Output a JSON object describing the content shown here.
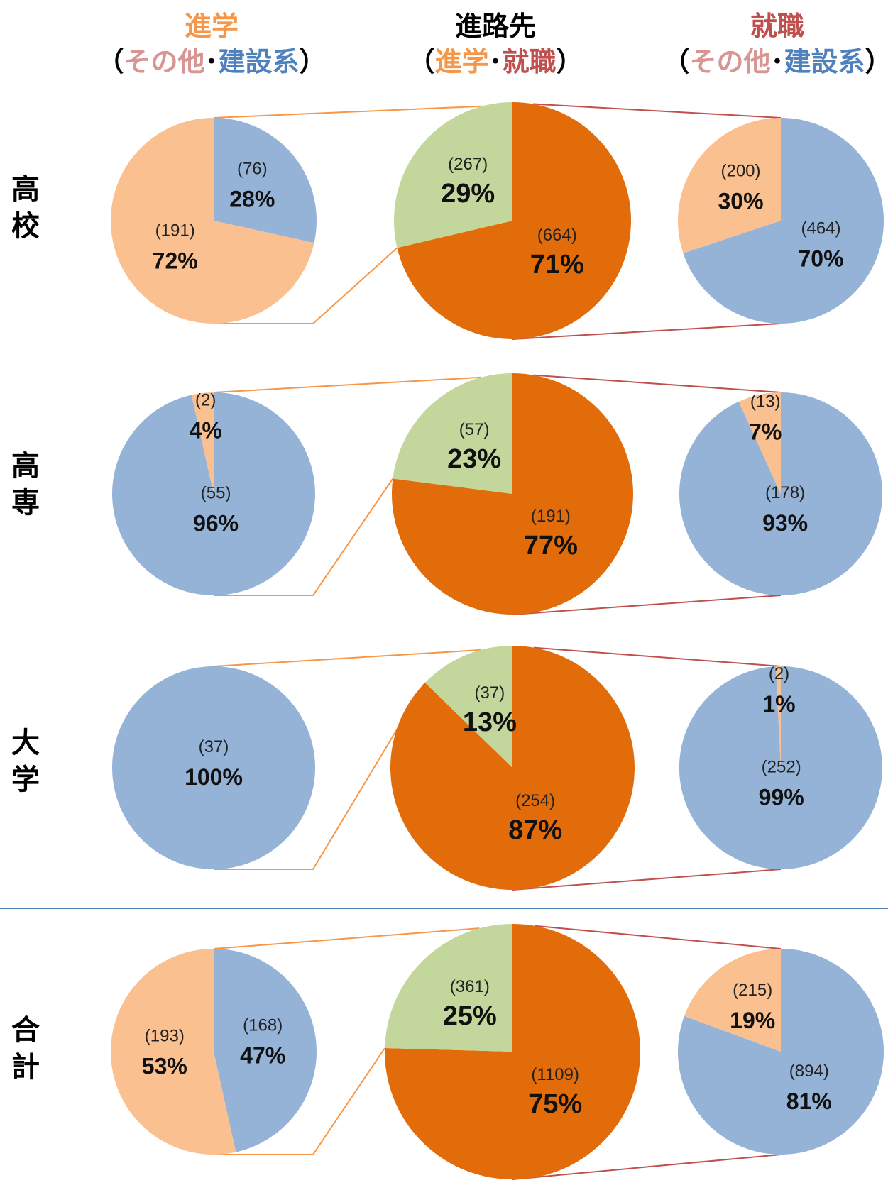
{
  "colors": {
    "shingaku": "#F79646",
    "shushoku": "#C0504D",
    "sonota": "#D99594",
    "kensetsu": "#4F81BD",
    "label_dark": "#000000",
    "pie_shingaku_center": "#E36C0A",
    "pie_shushoku_center": "#C3D69B",
    "pie_kensetsu": "#95B3D7",
    "pie_sonota": "#FAC090",
    "separator": "#4F81BD"
  },
  "headers": {
    "left": {
      "title": "進学",
      "open": "（",
      "a": "その他",
      "dot": "･",
      "b": "建設系",
      "close": "）"
    },
    "center": {
      "title": "進路先",
      "open": "（",
      "a": "進学",
      "dot": "･",
      "b": "就職",
      "close": "）"
    },
    "right": {
      "title": "就職",
      "open": "（",
      "a": "その他",
      "dot": "･",
      "b": "建設系",
      "close": "）"
    }
  },
  "row_labels": [
    "高校",
    "高専",
    "大学",
    "合計"
  ],
  "chart_data": [
    {
      "type": "pie",
      "group": "高校",
      "column": "進学",
      "slices": [
        {
          "label": "建設系",
          "count": 76,
          "percent": "28%",
          "color": "#95B3D7"
        },
        {
          "label": "その他",
          "count": 191,
          "percent": "72%",
          "color": "#FAC090"
        }
      ]
    },
    {
      "type": "pie",
      "group": "高校",
      "column": "進路先",
      "slices": [
        {
          "label": "就職",
          "count": 664,
          "percent": "71%",
          "color": "#E36C0A"
        },
        {
          "label": "進学",
          "count": 267,
          "percent": "29%",
          "color": "#C3D69B"
        }
      ]
    },
    {
      "type": "pie",
      "group": "高校",
      "column": "就職",
      "slices": [
        {
          "label": "建設系",
          "count": 464,
          "percent": "70%",
          "color": "#95B3D7"
        },
        {
          "label": "その他",
          "count": 200,
          "percent": "30%",
          "color": "#FAC090"
        }
      ]
    },
    {
      "type": "pie",
      "group": "高専",
      "column": "進学",
      "slices": [
        {
          "label": "建設系",
          "count": 55,
          "percent": "96%",
          "color": "#95B3D7"
        },
        {
          "label": "その他",
          "count": 2,
          "percent": "4%",
          "color": "#FAC090"
        }
      ]
    },
    {
      "type": "pie",
      "group": "高専",
      "column": "進路先",
      "slices": [
        {
          "label": "就職",
          "count": 191,
          "percent": "77%",
          "color": "#E36C0A"
        },
        {
          "label": "進学",
          "count": 57,
          "percent": "23%",
          "color": "#C3D69B"
        }
      ]
    },
    {
      "type": "pie",
      "group": "高専",
      "column": "就職",
      "slices": [
        {
          "label": "建設系",
          "count": 178,
          "percent": "93%",
          "color": "#95B3D7"
        },
        {
          "label": "その他",
          "count": 13,
          "percent": "7%",
          "color": "#FAC090"
        }
      ]
    },
    {
      "type": "pie",
      "group": "大学",
      "column": "進学",
      "slices": [
        {
          "label": "建設系",
          "count": 37,
          "percent": "100%",
          "color": "#95B3D7"
        }
      ]
    },
    {
      "type": "pie",
      "group": "大学",
      "column": "進路先",
      "slices": [
        {
          "label": "就職",
          "count": 254,
          "percent": "87%",
          "color": "#E36C0A"
        },
        {
          "label": "進学",
          "count": 37,
          "percent": "13%",
          "color": "#C3D69B"
        }
      ]
    },
    {
      "type": "pie",
      "group": "大学",
      "column": "就職",
      "slices": [
        {
          "label": "建設系",
          "count": 252,
          "percent": "99%",
          "color": "#95B3D7"
        },
        {
          "label": "その他",
          "count": 2,
          "percent": "1%",
          "color": "#FAC090"
        }
      ]
    },
    {
      "type": "pie",
      "group": "合計",
      "column": "進学",
      "slices": [
        {
          "label": "建設系",
          "count": 168,
          "percent": "47%",
          "color": "#95B3D7"
        },
        {
          "label": "その他",
          "count": 193,
          "percent": "53%",
          "color": "#FAC090"
        }
      ]
    },
    {
      "type": "pie",
      "group": "合計",
      "column": "進路先",
      "slices": [
        {
          "label": "就職",
          "count": 1109,
          "percent": "75%",
          "color": "#E36C0A"
        },
        {
          "label": "進学",
          "count": 361,
          "percent": "25%",
          "color": "#C3D69B"
        }
      ]
    },
    {
      "type": "pie",
      "group": "合計",
      "column": "就職",
      "slices": [
        {
          "label": "建設系",
          "count": 894,
          "percent": "81%",
          "color": "#95B3D7"
        },
        {
          "label": "その他",
          "count": 215,
          "percent": "19%",
          "color": "#FAC090"
        }
      ]
    }
  ]
}
